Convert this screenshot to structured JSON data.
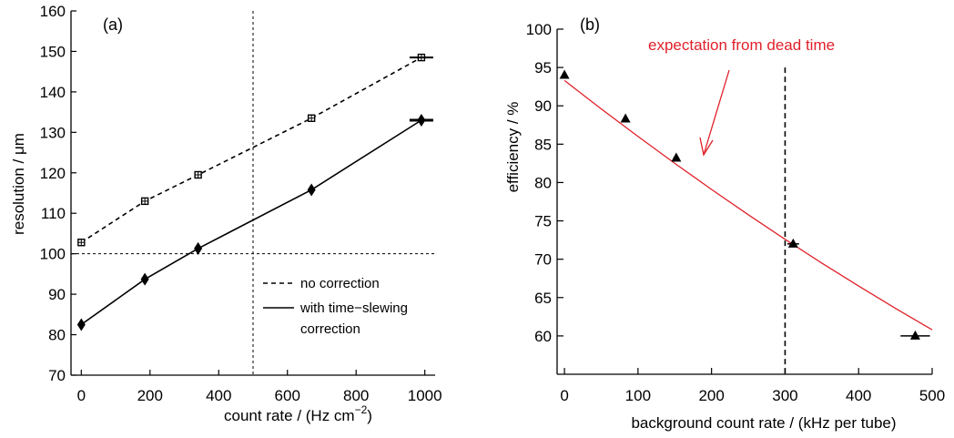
{
  "chart_data": [
    {
      "type": "line",
      "panel_label": "(a)",
      "xlabel": "count rate / (Hz cm",
      "xlabel_sup": "−2",
      "xlabel_close": ")",
      "ylabel": "resolution / μm",
      "xlim": [
        -30,
        1030
      ],
      "ylim": [
        70,
        160
      ],
      "xticks": [
        0,
        200,
        400,
        600,
        800,
        1000
      ],
      "yticks": [
        70,
        80,
        90,
        100,
        110,
        120,
        130,
        140,
        150,
        160
      ],
      "reference_lines": {
        "x": 500,
        "y": 100
      },
      "series": [
        {
          "name": "no correction",
          "style": "dashed",
          "marker": "square",
          "x": [
            0,
            185,
            340,
            670,
            990
          ],
          "y": [
            102.8,
            113,
            119.5,
            133.5,
            148.5
          ]
        },
        {
          "name": "with time−slewing correction",
          "style": "solid",
          "marker": "diamond",
          "x": [
            0,
            185,
            340,
            670,
            990
          ],
          "y": [
            82.5,
            93.7,
            101.3,
            115.8,
            133
          ]
        }
      ],
      "legend": {
        "placement": "lower-right",
        "entries": [
          {
            "lines": [
              "no correction"
            ],
            "style": "dashed"
          },
          {
            "lines": [
              "with time−slewing",
              "correction"
            ],
            "style": "solid"
          }
        ]
      }
    },
    {
      "type": "scatter",
      "panel_label": "(b)",
      "xlabel": "background count rate / (kHz per tube)",
      "ylabel": "efficiency / %",
      "xlim": [
        -10,
        500
      ],
      "ylim": [
        55,
        100
      ],
      "xticks": [
        0,
        100,
        200,
        300,
        400,
        500
      ],
      "yticks": [
        60,
        65,
        70,
        75,
        80,
        85,
        90,
        95,
        100
      ],
      "reference_lines": {
        "x": 300
      },
      "points": {
        "marker": "triangle",
        "x": [
          0,
          83,
          152,
          311,
          477
        ],
        "y": [
          94,
          88.3,
          83.2,
          72,
          60
        ],
        "xerr": [
          3,
          3,
          4,
          8,
          20
        ]
      },
      "curve": {
        "color": "#e0202a",
        "x": [
          0,
          50,
          100,
          150,
          200,
          250,
          300,
          350,
          400,
          450,
          500
        ],
        "y": [
          93.3,
          89.6,
          86,
          82.5,
          79.1,
          75.8,
          72.6,
          69.5,
          66.5,
          63.6,
          60.8
        ]
      },
      "annotation": "expectation from dead time",
      "annotation_color": "#e0202a"
    }
  ]
}
